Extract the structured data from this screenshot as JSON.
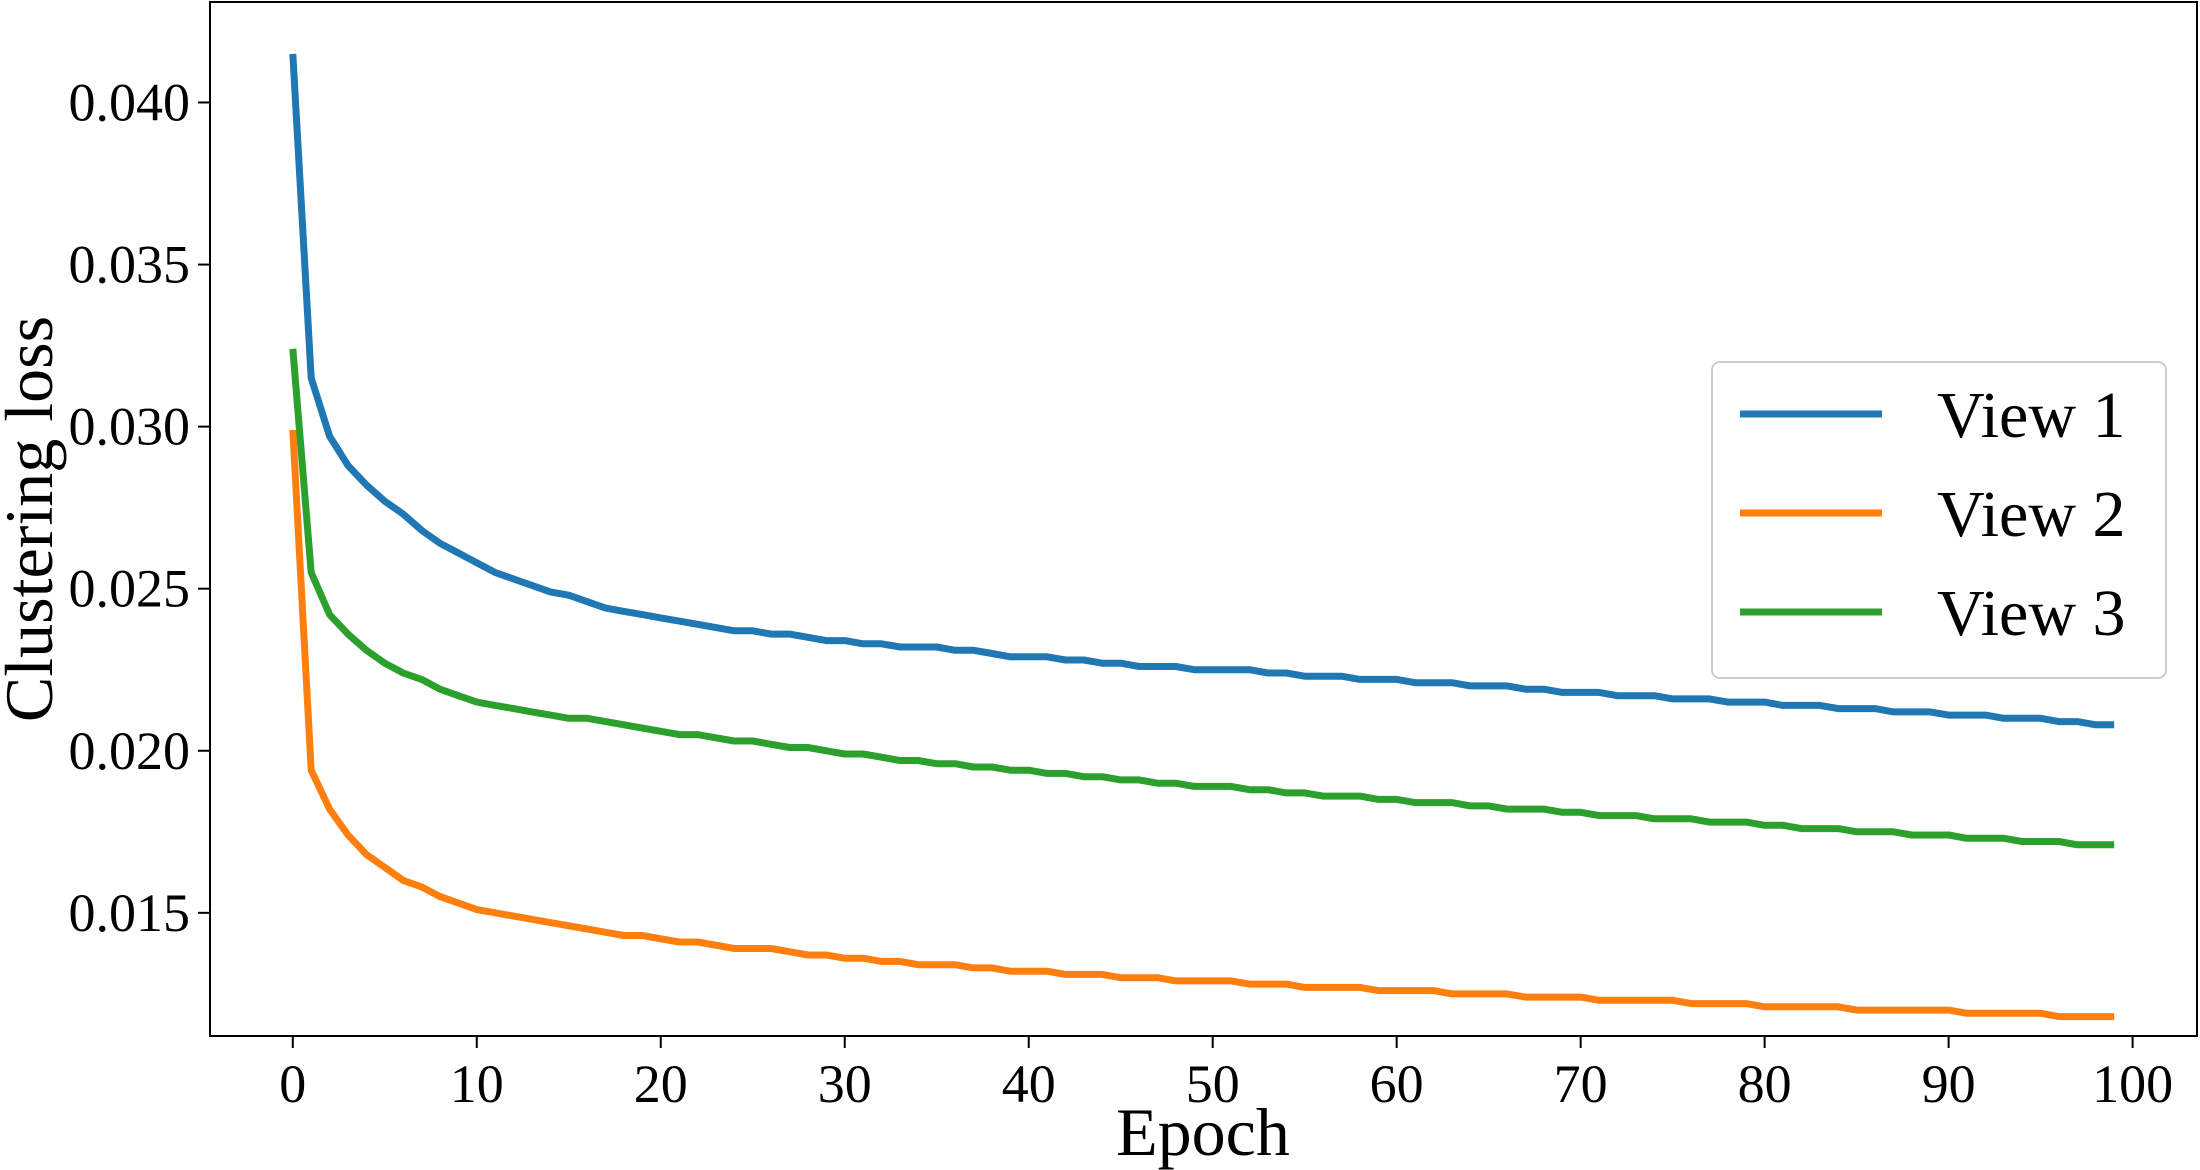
{
  "chart_data": {
    "type": "line",
    "title": "",
    "xlabel": "Epoch",
    "ylabel": "Clustering loss",
    "xlim": [
      -4.5,
      103.5
    ],
    "ylim": [
      0.0112,
      0.0431
    ],
    "xticks": [
      0,
      10,
      20,
      30,
      40,
      50,
      60,
      70,
      80,
      90,
      100
    ],
    "yticks": [
      0.015,
      0.02,
      0.025,
      0.03,
      0.035,
      0.04
    ],
    "ytick_labels": [
      "0.015",
      "0.020",
      "0.025",
      "0.030",
      "0.035",
      "0.040"
    ],
    "grid": false,
    "legend": "center-right",
    "series": [
      {
        "name": "View 1",
        "color": "#1f77b4",
        "x": [
          0,
          1,
          2,
          3,
          4,
          5,
          6,
          7,
          8,
          9,
          10,
          11,
          12,
          13,
          14,
          15,
          16,
          17,
          18,
          19,
          20,
          21,
          22,
          23,
          24,
          25,
          26,
          27,
          28,
          29,
          30,
          31,
          32,
          33,
          34,
          35,
          36,
          37,
          38,
          39,
          40,
          41,
          42,
          43,
          44,
          45,
          46,
          47,
          48,
          49,
          50,
          51,
          52,
          53,
          54,
          55,
          56,
          57,
          58,
          59,
          60,
          61,
          62,
          63,
          64,
          65,
          66,
          67,
          68,
          69,
          70,
          71,
          72,
          73,
          74,
          75,
          76,
          77,
          78,
          79,
          80,
          81,
          82,
          83,
          84,
          85,
          86,
          87,
          88,
          89,
          90,
          91,
          92,
          93,
          94,
          95,
          96,
          97,
          98,
          99
        ],
        "y": [
          0.0415,
          0.0315,
          0.0297,
          0.0288,
          0.0282,
          0.0277,
          0.0273,
          0.0268,
          0.0264,
          0.0261,
          0.0258,
          0.0255,
          0.0253,
          0.0251,
          0.0249,
          0.0248,
          0.0246,
          0.0244,
          0.0243,
          0.0242,
          0.0241,
          0.024,
          0.0239,
          0.0238,
          0.0237,
          0.0237,
          0.0236,
          0.0236,
          0.0235,
          0.0234,
          0.0234,
          0.0233,
          0.0233,
          0.0232,
          0.0232,
          0.0232,
          0.0231,
          0.0231,
          0.023,
          0.0229,
          0.0229,
          0.0229,
          0.0228,
          0.0228,
          0.0227,
          0.0227,
          0.0226,
          0.0226,
          0.0226,
          0.0225,
          0.0225,
          0.0225,
          0.0225,
          0.0224,
          0.0224,
          0.0223,
          0.0223,
          0.0223,
          0.0222,
          0.0222,
          0.0222,
          0.0221,
          0.0221,
          0.0221,
          0.022,
          0.022,
          0.022,
          0.0219,
          0.0219,
          0.0218,
          0.0218,
          0.0218,
          0.0217,
          0.0217,
          0.0217,
          0.0216,
          0.0216,
          0.0216,
          0.0215,
          0.0215,
          0.0215,
          0.0214,
          0.0214,
          0.0214,
          0.0213,
          0.0213,
          0.0213,
          0.0212,
          0.0212,
          0.0212,
          0.0211,
          0.0211,
          0.0211,
          0.021,
          0.021,
          0.021,
          0.0209,
          0.0209,
          0.0208,
          0.0208
        ]
      },
      {
        "name": "View 2",
        "color": "#ff7f0e",
        "x": [
          0,
          1,
          2,
          3,
          4,
          5,
          6,
          7,
          8,
          9,
          10,
          11,
          12,
          13,
          14,
          15,
          16,
          17,
          18,
          19,
          20,
          21,
          22,
          23,
          24,
          25,
          26,
          27,
          28,
          29,
          30,
          31,
          32,
          33,
          34,
          35,
          36,
          37,
          38,
          39,
          40,
          41,
          42,
          43,
          44,
          45,
          46,
          47,
          48,
          49,
          50,
          51,
          52,
          53,
          54,
          55,
          56,
          57,
          58,
          59,
          60,
          61,
          62,
          63,
          64,
          65,
          66,
          67,
          68,
          69,
          70,
          71,
          72,
          73,
          74,
          75,
          76,
          77,
          78,
          79,
          80,
          81,
          82,
          83,
          84,
          85,
          86,
          87,
          88,
          89,
          90,
          91,
          92,
          93,
          94,
          95,
          96,
          97,
          98,
          99
        ],
        "y": [
          0.0299,
          0.0194,
          0.0182,
          0.0174,
          0.0168,
          0.0164,
          0.016,
          0.0158,
          0.0155,
          0.0153,
          0.0151,
          0.015,
          0.0149,
          0.0148,
          0.0147,
          0.0146,
          0.0145,
          0.0144,
          0.0143,
          0.0143,
          0.0142,
          0.0141,
          0.0141,
          0.014,
          0.0139,
          0.0139,
          0.0139,
          0.0138,
          0.0137,
          0.0137,
          0.0136,
          0.0136,
          0.0135,
          0.0135,
          0.0134,
          0.0134,
          0.0134,
          0.0133,
          0.0133,
          0.0132,
          0.0132,
          0.0132,
          0.0131,
          0.0131,
          0.0131,
          0.013,
          0.013,
          0.013,
          0.0129,
          0.0129,
          0.0129,
          0.0129,
          0.0128,
          0.0128,
          0.0128,
          0.0127,
          0.0127,
          0.0127,
          0.0127,
          0.0126,
          0.0126,
          0.0126,
          0.0126,
          0.0125,
          0.0125,
          0.0125,
          0.0125,
          0.0124,
          0.0124,
          0.0124,
          0.0124,
          0.0123,
          0.0123,
          0.0123,
          0.0123,
          0.0123,
          0.0122,
          0.0122,
          0.0122,
          0.0122,
          0.0121,
          0.0121,
          0.0121,
          0.0121,
          0.0121,
          0.012,
          0.012,
          0.012,
          0.012,
          0.012,
          0.012,
          0.0119,
          0.0119,
          0.0119,
          0.0119,
          0.0119,
          0.0118,
          0.0118,
          0.0118,
          0.0118
        ]
      },
      {
        "name": "View 3",
        "color": "#2ca02c",
        "x": [
          0,
          1,
          2,
          3,
          4,
          5,
          6,
          7,
          8,
          9,
          10,
          11,
          12,
          13,
          14,
          15,
          16,
          17,
          18,
          19,
          20,
          21,
          22,
          23,
          24,
          25,
          26,
          27,
          28,
          29,
          30,
          31,
          32,
          33,
          34,
          35,
          36,
          37,
          38,
          39,
          40,
          41,
          42,
          43,
          44,
          45,
          46,
          47,
          48,
          49,
          50,
          51,
          52,
          53,
          54,
          55,
          56,
          57,
          58,
          59,
          60,
          61,
          62,
          63,
          64,
          65,
          66,
          67,
          68,
          69,
          70,
          71,
          72,
          73,
          74,
          75,
          76,
          77,
          78,
          79,
          80,
          81,
          82,
          83,
          84,
          85,
          86,
          87,
          88,
          89,
          90,
          91,
          92,
          93,
          94,
          95,
          96,
          97,
          98,
          99
        ],
        "y": [
          0.0324,
          0.0255,
          0.0242,
          0.0236,
          0.0231,
          0.0227,
          0.0224,
          0.0222,
          0.0219,
          0.0217,
          0.0215,
          0.0214,
          0.0213,
          0.0212,
          0.0211,
          0.021,
          0.021,
          0.0209,
          0.0208,
          0.0207,
          0.0206,
          0.0205,
          0.0205,
          0.0204,
          0.0203,
          0.0203,
          0.0202,
          0.0201,
          0.0201,
          0.02,
          0.0199,
          0.0199,
          0.0198,
          0.0197,
          0.0197,
          0.0196,
          0.0196,
          0.0195,
          0.0195,
          0.0194,
          0.0194,
          0.0193,
          0.0193,
          0.0192,
          0.0192,
          0.0191,
          0.0191,
          0.019,
          0.019,
          0.0189,
          0.0189,
          0.0189,
          0.0188,
          0.0188,
          0.0187,
          0.0187,
          0.0186,
          0.0186,
          0.0186,
          0.0185,
          0.0185,
          0.0184,
          0.0184,
          0.0184,
          0.0183,
          0.0183,
          0.0182,
          0.0182,
          0.0182,
          0.0181,
          0.0181,
          0.018,
          0.018,
          0.018,
          0.0179,
          0.0179,
          0.0179,
          0.0178,
          0.0178,
          0.0178,
          0.0177,
          0.0177,
          0.0176,
          0.0176,
          0.0176,
          0.0175,
          0.0175,
          0.0175,
          0.0174,
          0.0174,
          0.0174,
          0.0173,
          0.0173,
          0.0173,
          0.0172,
          0.0172,
          0.0172,
          0.0171,
          0.0171,
          0.0171
        ]
      }
    ]
  }
}
